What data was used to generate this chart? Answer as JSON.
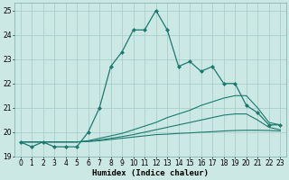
{
  "title": "",
  "xlabel": "Humidex (Indice chaleur)",
  "bg_color": "#cce8e4",
  "grid_color": "#aacfcb",
  "line_color": "#1a7a6e",
  "xlim": [
    -0.5,
    23.5
  ],
  "ylim": [
    19.0,
    25.3
  ],
  "yticks": [
    19,
    20,
    21,
    22,
    23,
    24,
    25
  ],
  "xticks": [
    0,
    1,
    2,
    3,
    4,
    5,
    6,
    7,
    8,
    9,
    10,
    11,
    12,
    13,
    14,
    15,
    16,
    17,
    18,
    19,
    20,
    21,
    22,
    23
  ],
  "line1_x": [
    0,
    1,
    2,
    3,
    4,
    5,
    6,
    7,
    8,
    9,
    10,
    11,
    12,
    13,
    14,
    15,
    16,
    17,
    18,
    19,
    20,
    21,
    22,
    23
  ],
  "line1_y": [
    19.6,
    19.4,
    19.6,
    19.4,
    19.4,
    19.4,
    20.0,
    21.0,
    22.7,
    23.3,
    24.2,
    24.2,
    25.0,
    24.2,
    22.7,
    22.9,
    22.5,
    22.7,
    22.0,
    22.0,
    21.1,
    20.8,
    20.3,
    20.3
  ],
  "line2_x": [
    0,
    1,
    2,
    3,
    4,
    5,
    6,
    7,
    8,
    9,
    10,
    11,
    12,
    13,
    14,
    15,
    16,
    17,
    18,
    19,
    20,
    21,
    22,
    23
  ],
  "line2_y": [
    19.6,
    19.6,
    19.6,
    19.6,
    19.6,
    19.6,
    19.65,
    19.75,
    19.85,
    19.95,
    20.1,
    20.25,
    20.4,
    20.6,
    20.75,
    20.9,
    21.1,
    21.25,
    21.4,
    21.5,
    21.5,
    21.0,
    20.4,
    20.3
  ],
  "line3_x": [
    0,
    1,
    2,
    3,
    4,
    5,
    6,
    7,
    8,
    9,
    10,
    11,
    12,
    13,
    14,
    15,
    16,
    17,
    18,
    19,
    20,
    21,
    22,
    23
  ],
  "line3_y": [
    19.6,
    19.6,
    19.6,
    19.6,
    19.6,
    19.6,
    19.62,
    19.68,
    19.75,
    19.82,
    19.9,
    20.0,
    20.1,
    20.2,
    20.3,
    20.4,
    20.5,
    20.6,
    20.7,
    20.75,
    20.75,
    20.5,
    20.2,
    20.1
  ],
  "line4_x": [
    0,
    1,
    2,
    3,
    4,
    5,
    6,
    7,
    8,
    9,
    10,
    11,
    12,
    13,
    14,
    15,
    16,
    17,
    18,
    19,
    20,
    21,
    22,
    23
  ],
  "line4_y": [
    19.6,
    19.6,
    19.6,
    19.6,
    19.6,
    19.6,
    19.62,
    19.65,
    19.7,
    19.75,
    19.8,
    19.85,
    19.9,
    19.92,
    19.95,
    19.97,
    20.0,
    20.02,
    20.05,
    20.07,
    20.08,
    20.08,
    20.07,
    20.05
  ]
}
